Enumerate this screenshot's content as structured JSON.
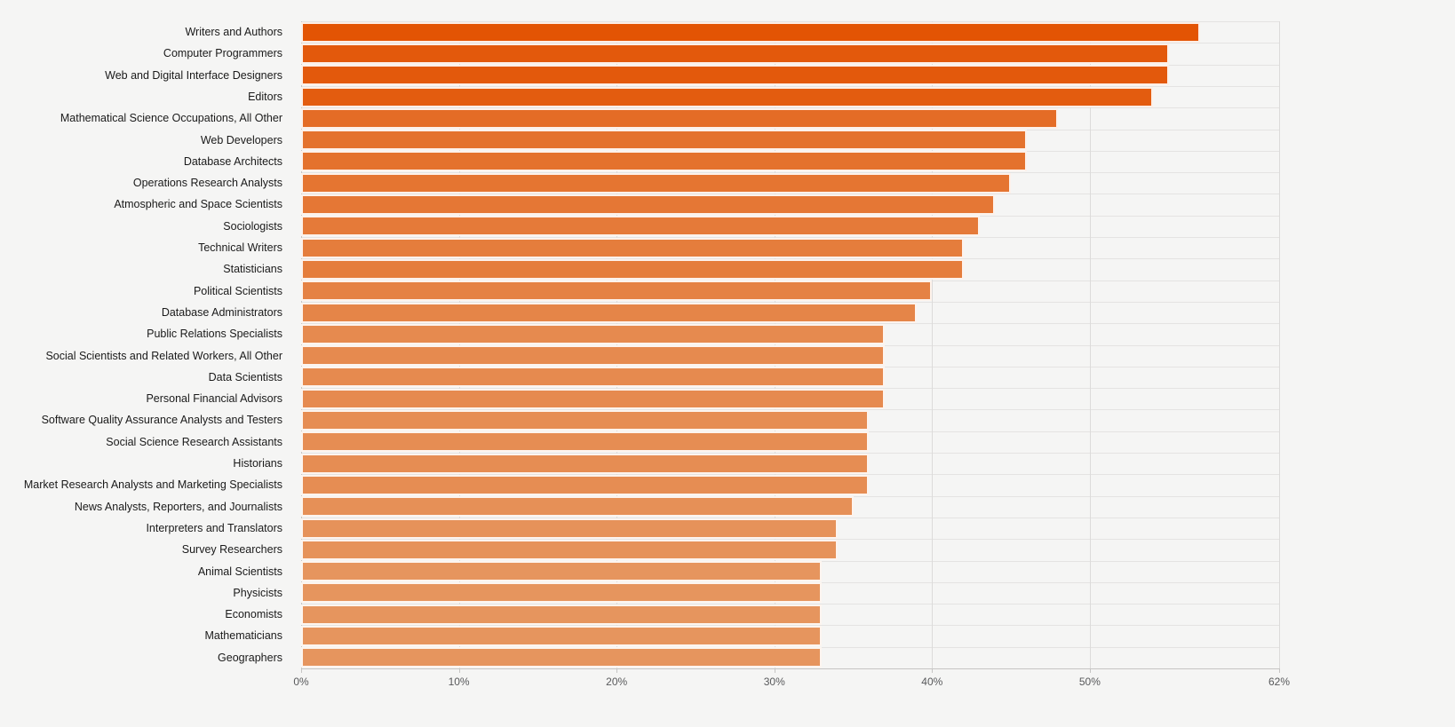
{
  "chart_data": {
    "type": "bar",
    "orientation": "horizontal",
    "title": "",
    "xlabel": "",
    "ylabel": "",
    "value_suffix": "%",
    "xlim": [
      0,
      62
    ],
    "x_ticks": [
      "0%",
      "10%",
      "20%",
      "30%",
      "40%",
      "50%",
      "62%"
    ],
    "x_tick_values": [
      0,
      10,
      20,
      30,
      40,
      50,
      62
    ],
    "grid": true,
    "legend": false,
    "categories": [
      "Writers and Authors",
      "Computer Programmers",
      "Web and Digital Interface Designers",
      "Editors",
      "Mathematical Science Occupations, All Other",
      "Web Developers",
      "Database Architects",
      "Operations Research Analysts",
      "Atmospheric and Space Scientists",
      "Sociologists",
      "Technical Writers",
      "Statisticians",
      "Political Scientists",
      "Database Administrators",
      "Public Relations Specialists",
      "Social Scientists and Related Workers, All Other",
      "Data Scientists",
      "Personal Financial Advisors",
      "Software Quality Assurance Analysts and Testers",
      "Social Science Research Assistants",
      "Historians",
      "Market Research Analysts and Marketing Specialists",
      "News Analysts, Reporters, and Journalists",
      "Interpreters and Translators",
      "Survey Researchers",
      "Animal Scientists",
      "Physicists",
      "Economists",
      "Mathematicians",
      "Geographers"
    ],
    "values": [
      57,
      55,
      55,
      54,
      48,
      46,
      46,
      45,
      44,
      43,
      42,
      42,
      40,
      39,
      37,
      37,
      37,
      37,
      36,
      36,
      36,
      36,
      35,
      34,
      34,
      33,
      33,
      33,
      33,
      33
    ],
    "colors": {
      "background": "#f5f5f4",
      "bar_scale_min_value": 33,
      "bar_scale_max_value": 57,
      "bar_scale_min_color": "#E6955E",
      "bar_scale_max_color": "#E35404",
      "gridline": "#dcdbda",
      "axis_line": "#c6c5c4",
      "row_separator": "#e4e3e2",
      "label_text": "#1a1a1a",
      "tick_text": "#58595b"
    }
  }
}
